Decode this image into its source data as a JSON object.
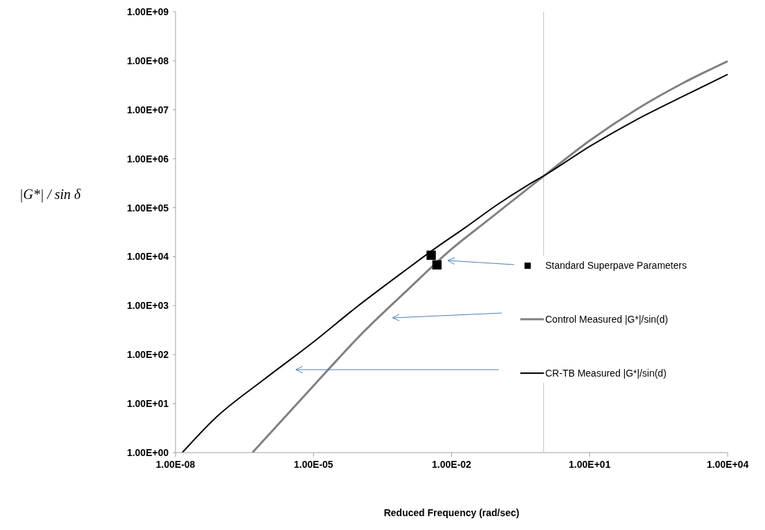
{
  "chart_data": {
    "type": "line",
    "xlabel": "Reduced Frequency (rad/sec)",
    "ylabel": "|G*| / sin δ",
    "log": "xy",
    "grid": false,
    "legend": "right",
    "xlim": [
      1e-08,
      10000
    ],
    "ylim": [
      1,
      1000000000
    ],
    "xticks": [
      {
        "value": 1e-08,
        "label": "1.00E-08"
      },
      {
        "value": 1e-05,
        "label": "1.00E-05"
      },
      {
        "value": 0.01,
        "label": "1.00E-02"
      },
      {
        "value": 10,
        "label": "1.00E+01"
      },
      {
        "value": 10000,
        "label": "1.00E+04"
      }
    ],
    "yticks": [
      {
        "value": 1,
        "label": "1.00E+00"
      },
      {
        "value": 10,
        "label": "1.00E+01"
      },
      {
        "value": 100,
        "label": "1.00E+02"
      },
      {
        "value": 1000,
        "label": "1.00E+03"
      },
      {
        "value": 10000,
        "label": "1.00E+04"
      },
      {
        "value": 100000,
        "label": "1.00E+05"
      },
      {
        "value": 1000000,
        "label": "1.00E+06"
      },
      {
        "value": 10000000,
        "label": "1.00E+07"
      },
      {
        "value": 100000000,
        "label": "1.00E+08"
      },
      {
        "value": 1000000000,
        "label": "1.00E+09"
      }
    ],
    "ref_lines": [
      {
        "axis": "x",
        "value": 1,
        "color": "#c0c0c0"
      }
    ],
    "series": [
      {
        "name": "Standard Superpave Parameters",
        "type": "scatter",
        "marker": "square",
        "color": "#000000",
        "x": [
          0.0036,
          0.0048
        ],
        "values": [
          10700,
          6800
        ]
      },
      {
        "name": "Control Measured |G*|/sin(d)",
        "color": "#808080",
        "x": [
          4.7e-07,
          1.9e-05,
          9.5e-05,
          0.0011,
          0.0098,
          0.059,
          1.23,
          10,
          105,
          1050,
          10000
        ],
        "values": [
          1,
          45,
          229,
          2090,
          14100,
          53700,
          513000,
          2340000,
          10200000,
          34700000,
          98000000
        ]
      },
      {
        "name": "CR-TB Measured |G*|/sin(d)",
        "color": "#000000",
        "x": [
          1.4e-08,
          7.2e-08,
          8.7e-07,
          1e-05,
          8.3e-05,
          0.00089,
          0.0044,
          0.0195,
          0.098,
          0.43,
          1.23,
          10,
          93,
          1050,
          10000
        ],
        "values": [
          1,
          5,
          32,
          182,
          910,
          4900,
          14800,
          38900,
          115000,
          280000,
          500000,
          1780000,
          5900000,
          18600000,
          52500000
        ]
      }
    ]
  }
}
